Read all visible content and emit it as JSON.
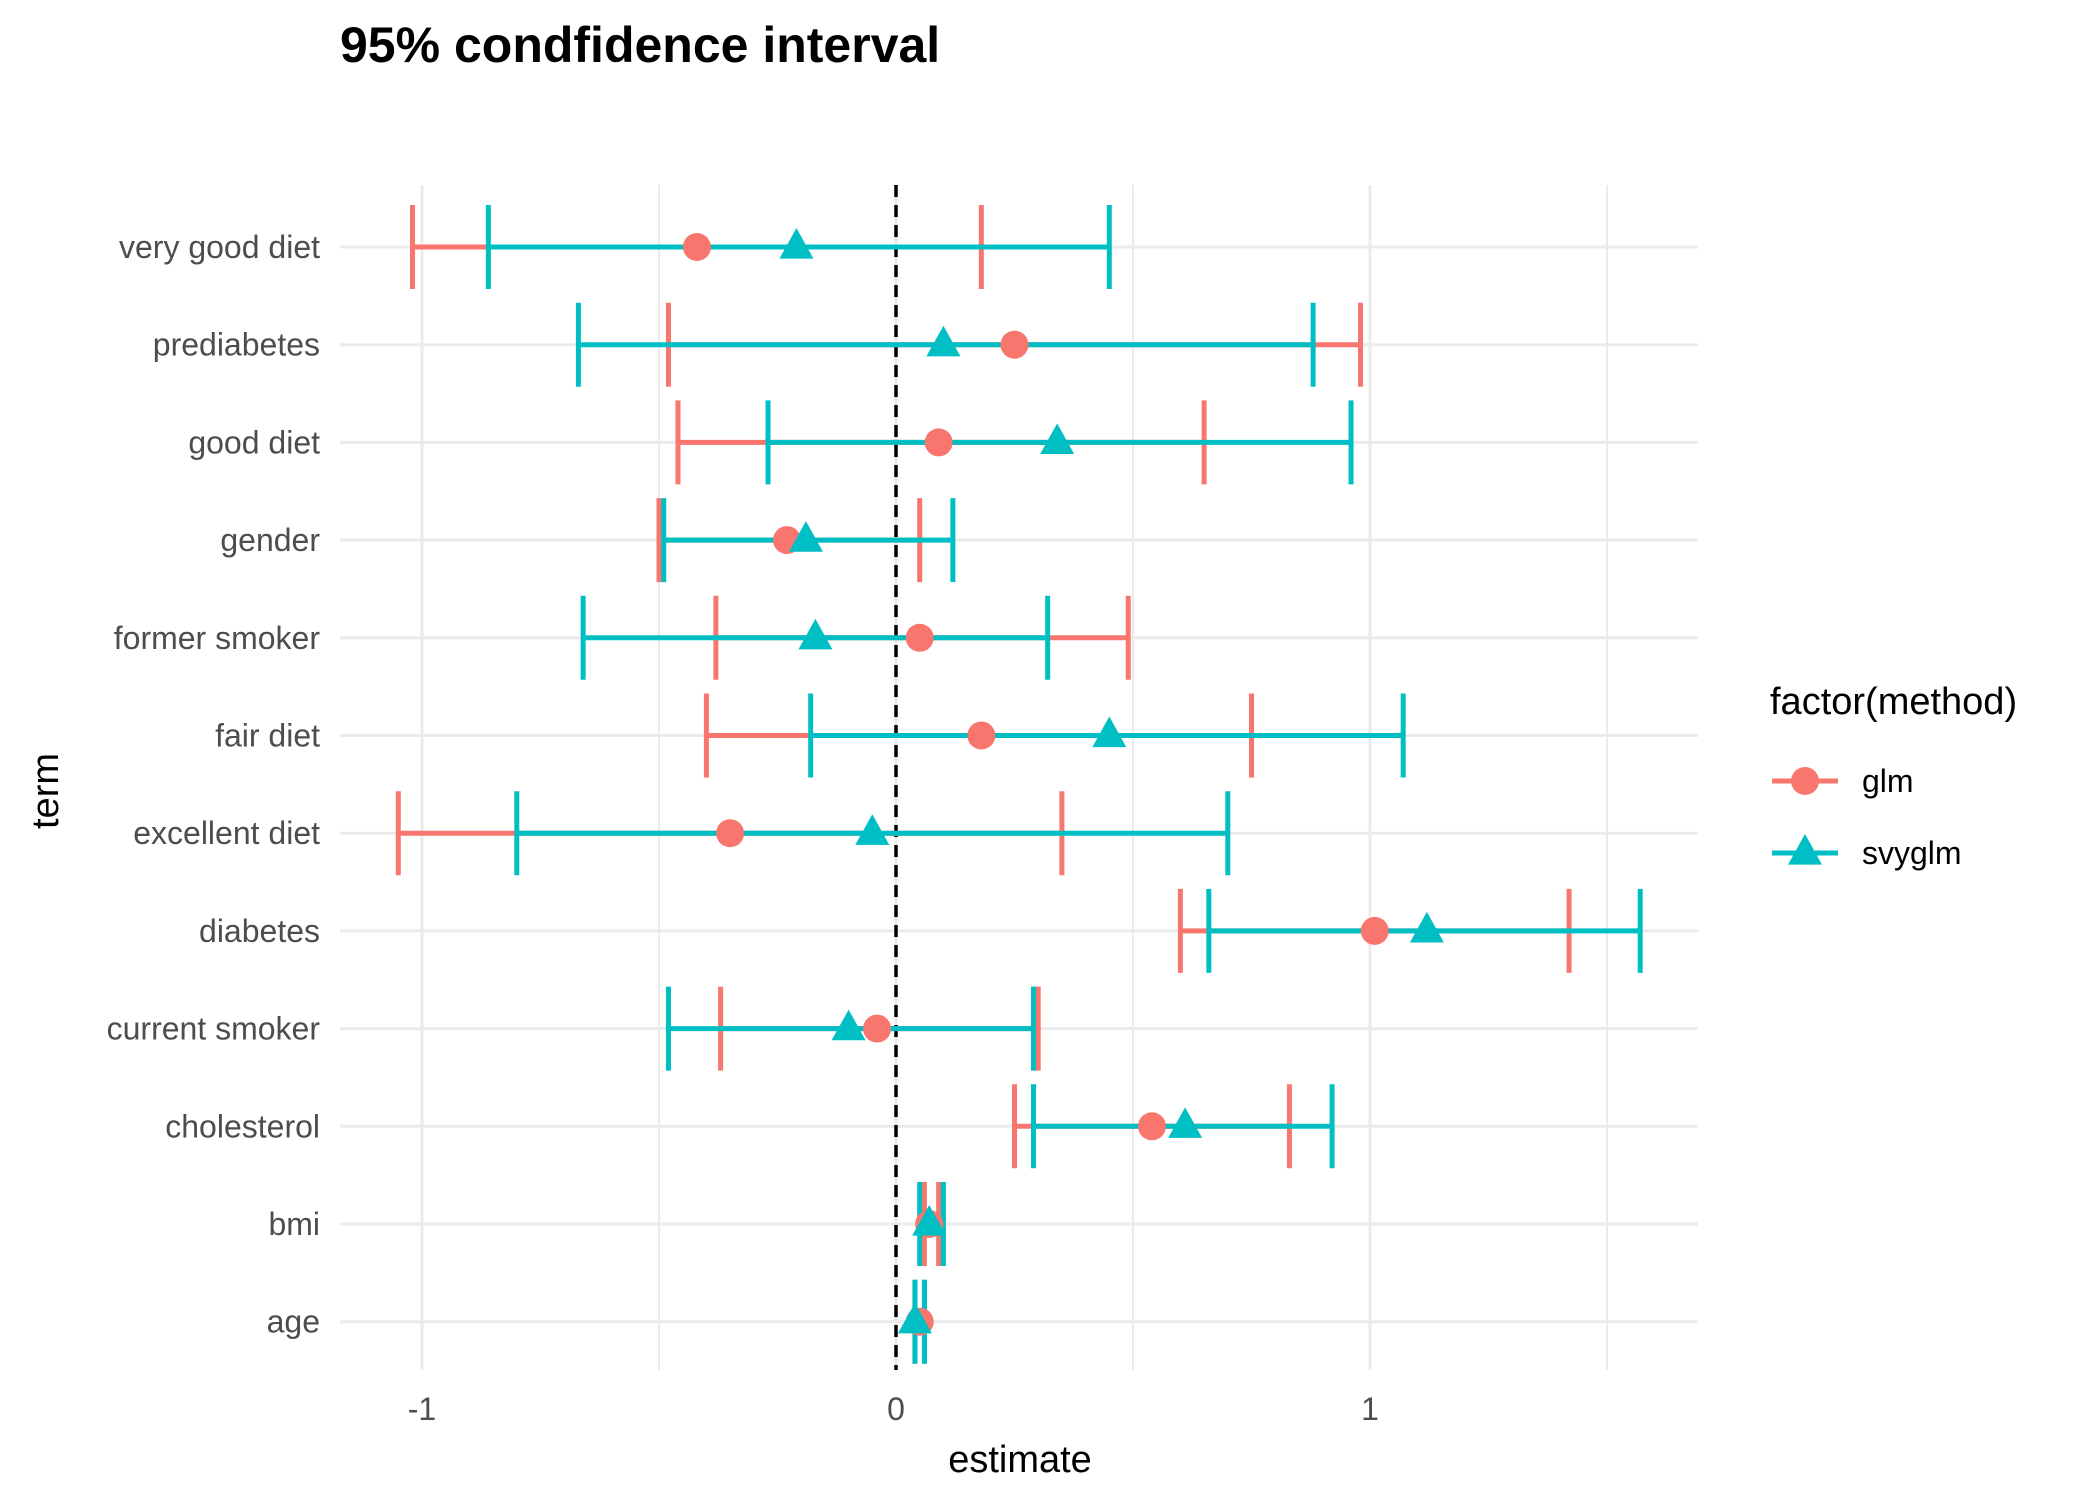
{
  "chart_data": {
    "type": "errorbar",
    "title": "95% condfidence interval",
    "xlabel": "estimate",
    "ylabel": "term",
    "xlim": [
      -1.2,
      1.7
    ],
    "x_ticks": [
      -1,
      0,
      1
    ],
    "reference_line": 0,
    "grid": true,
    "legend_title": "factor(method)",
    "legend_position": "right",
    "categories": [
      "very good diet",
      "prediabetes",
      "good diet",
      "gender",
      "former smoker",
      "fair diet",
      "excellent diet",
      "diabetes",
      "current smoker",
      "cholesterol",
      "bmi",
      "age"
    ],
    "series": [
      {
        "name": "glm",
        "color": "#F8766D",
        "marker": "circle",
        "estimate": [
          -0.42,
          0.25,
          0.09,
          -0.23,
          0.05,
          0.18,
          -0.35,
          1.01,
          -0.04,
          0.54,
          0.07,
          0.05
        ],
        "lower": [
          -1.02,
          -0.48,
          -0.46,
          -0.5,
          -0.38,
          -0.4,
          -1.05,
          0.6,
          -0.37,
          0.25,
          0.06,
          0.04
        ],
        "upper": [
          0.18,
          0.98,
          0.65,
          0.05,
          0.49,
          0.75,
          0.35,
          1.42,
          0.3,
          0.83,
          0.09,
          0.06
        ]
      },
      {
        "name": "svyglm",
        "color": "#00BFC4",
        "marker": "triangle",
        "estimate": [
          -0.21,
          0.1,
          0.34,
          -0.19,
          -0.17,
          0.45,
          -0.05,
          1.12,
          -0.1,
          0.61,
          0.07,
          0.04
        ],
        "lower": [
          -0.86,
          -0.67,
          -0.27,
          -0.49,
          -0.66,
          -0.18,
          -0.8,
          0.66,
          -0.48,
          0.29,
          0.05,
          0.04
        ],
        "upper": [
          0.45,
          0.88,
          0.96,
          0.12,
          0.32,
          1.07,
          0.7,
          1.57,
          0.29,
          0.92,
          0.1,
          0.06
        ]
      }
    ]
  }
}
